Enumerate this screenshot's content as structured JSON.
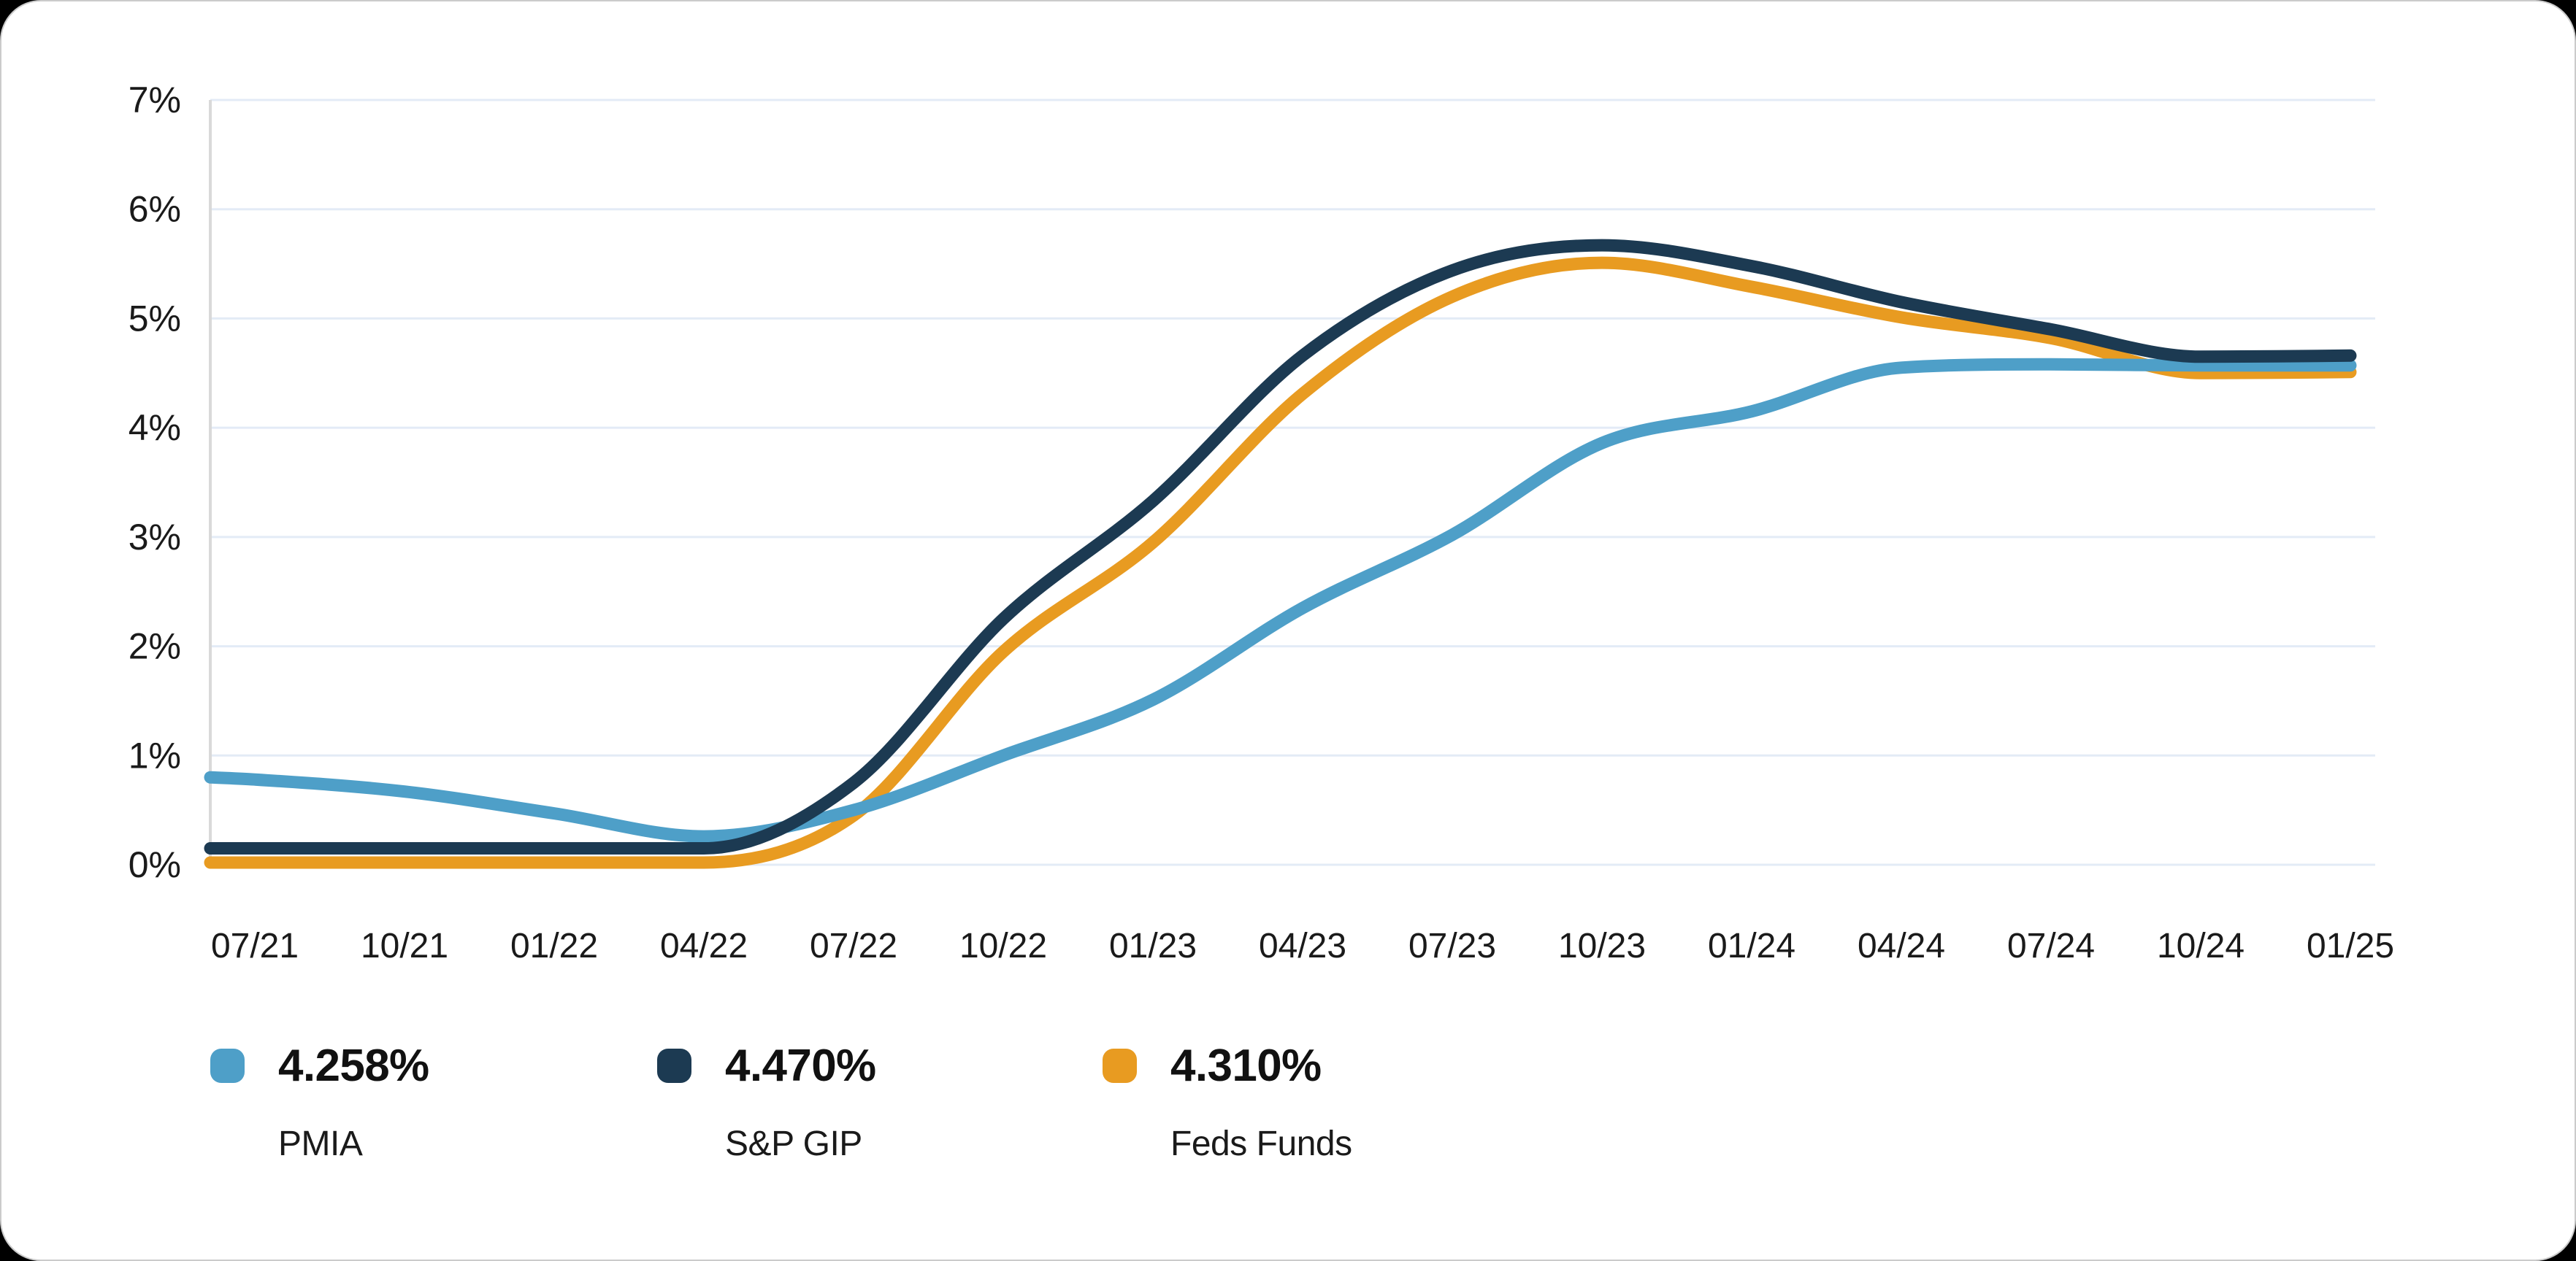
{
  "card": {
    "background": "#ffffff",
    "page_background": "#000000",
    "border_color": "#cbcbcb"
  },
  "chart_data": {
    "type": "line",
    "title": "",
    "grid": "horizontal",
    "legend_position": "bottom-left",
    "colors": {
      "grid": "#E3EBF6",
      "axis": "#D9D9D9",
      "text": "#1A1A1A"
    },
    "y_axis": {
      "unit": "%",
      "min": 0,
      "max": 7,
      "tick_labels": [
        "0%",
        "1%",
        "2%",
        "3%",
        "4%",
        "5%",
        "6%",
        "7%"
      ]
    },
    "x_axis": {
      "tick_labels": [
        "07/21",
        "10/21",
        "01/22",
        "04/22",
        "07/22",
        "10/22",
        "01/23",
        "04/23",
        "07/23",
        "10/23",
        "01/24",
        "04/24",
        "07/24",
        "10/24",
        "01/25"
      ]
    },
    "values_start_at_axis": true,
    "series": [
      {
        "name": "PMIA",
        "color": "#4E9FC8",
        "legend_value": "4.258%",
        "values": [
          0.8,
          0.78,
          0.67,
          0.47,
          0.26,
          0.5,
          1.0,
          1.51,
          2.35,
          3.02,
          3.86,
          4.15,
          4.55,
          4.58,
          4.57,
          4.57
        ]
      },
      {
        "name": "S&P GIP",
        "color": "#1C3A52",
        "legend_value": "4.470%",
        "values": [
          0.15,
          0.15,
          0.15,
          0.15,
          0.15,
          0.75,
          2.25,
          3.33,
          4.66,
          5.44,
          5.67,
          5.48,
          5.15,
          4.9,
          4.65,
          4.66
        ]
      },
      {
        "name": "Feds Funds",
        "color": "#E89B21",
        "legend_value": "4.310%",
        "values": [
          0.02,
          0.02,
          0.02,
          0.02,
          0.02,
          0.45,
          1.95,
          2.95,
          4.31,
          5.2,
          5.51,
          5.29,
          5.01,
          4.82,
          4.5,
          4.51
        ]
      }
    ]
  }
}
